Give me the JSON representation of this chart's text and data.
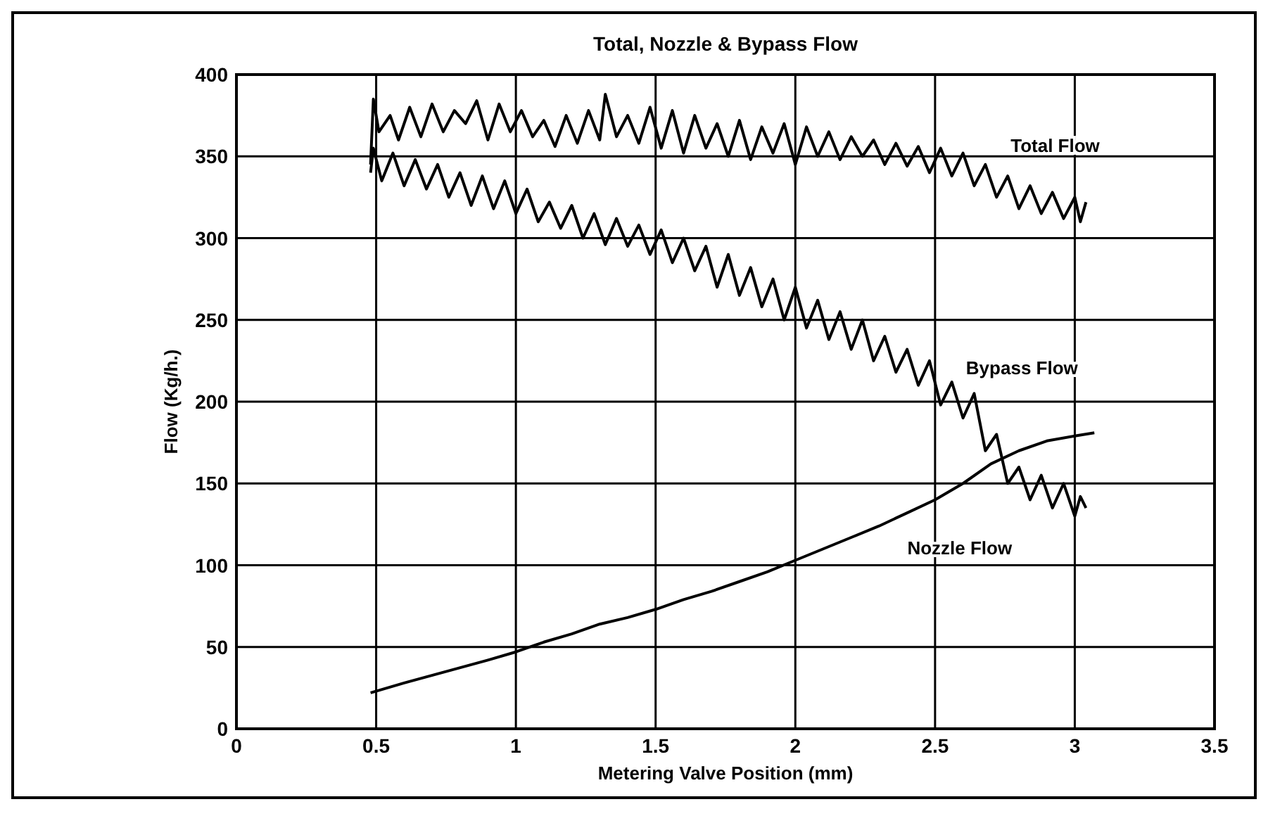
{
  "chart_data": {
    "type": "line",
    "title": "Total, Nozzle & Bypass Flow",
    "xlabel": "Metering Valve Position (mm)",
    "ylabel": "Flow (Kg/h.)",
    "xlim": [
      0,
      3.5
    ],
    "xticks": [
      0,
      0.5,
      1,
      1.5,
      2,
      2.5,
      3,
      3.5
    ],
    "ylim": [
      0,
      400
    ],
    "yticks": [
      0,
      50,
      100,
      150,
      200,
      250,
      300,
      350,
      400
    ],
    "grid": true,
    "marker": "none",
    "line_style": "solid",
    "series": [
      {
        "name": "Total Flow",
        "color": "#000000",
        "x": [
          0.48,
          0.49,
          0.51,
          0.55,
          0.58,
          0.62,
          0.66,
          0.7,
          0.74,
          0.78,
          0.82,
          0.86,
          0.9,
          0.94,
          0.98,
          1.02,
          1.06,
          1.1,
          1.14,
          1.18,
          1.22,
          1.26,
          1.3,
          1.32,
          1.36,
          1.4,
          1.44,
          1.48,
          1.52,
          1.56,
          1.6,
          1.64,
          1.68,
          1.72,
          1.76,
          1.8,
          1.84,
          1.88,
          1.92,
          1.96,
          2.0,
          2.04,
          2.08,
          2.12,
          2.16,
          2.2,
          2.24,
          2.28,
          2.32,
          2.36,
          2.4,
          2.44,
          2.48,
          2.52,
          2.56,
          2.6,
          2.64,
          2.68,
          2.72,
          2.76,
          2.8,
          2.84,
          2.88,
          2.92,
          2.96,
          3.0,
          3.02,
          3.04
        ],
        "values": [
          345,
          385,
          365,
          375,
          360,
          380,
          362,
          382,
          365,
          378,
          370,
          384,
          360,
          382,
          365,
          378,
          362,
          372,
          356,
          375,
          358,
          378,
          360,
          388,
          362,
          375,
          358,
          380,
          355,
          378,
          352,
          375,
          355,
          370,
          350,
          372,
          348,
          368,
          352,
          370,
          345,
          368,
          350,
          365,
          348,
          362,
          350,
          360,
          345,
          358,
          344,
          356,
          340,
          355,
          338,
          352,
          332,
          345,
          325,
          338,
          318,
          332,
          315,
          328,
          312,
          325,
          310,
          322
        ]
      },
      {
        "name": "Bypass Flow",
        "color": "#000000",
        "x": [
          0.48,
          0.49,
          0.52,
          0.56,
          0.6,
          0.64,
          0.68,
          0.72,
          0.76,
          0.8,
          0.84,
          0.88,
          0.92,
          0.96,
          1.0,
          1.04,
          1.08,
          1.12,
          1.16,
          1.2,
          1.24,
          1.28,
          1.32,
          1.36,
          1.4,
          1.44,
          1.48,
          1.52,
          1.56,
          1.6,
          1.64,
          1.68,
          1.72,
          1.76,
          1.8,
          1.84,
          1.88,
          1.92,
          1.96,
          2.0,
          2.04,
          2.08,
          2.12,
          2.16,
          2.2,
          2.24,
          2.28,
          2.32,
          2.36,
          2.4,
          2.44,
          2.48,
          2.52,
          2.56,
          2.6,
          2.64,
          2.68,
          2.72,
          2.76,
          2.8,
          2.84,
          2.88,
          2.92,
          2.96,
          3.0,
          3.02,
          3.04
        ],
        "values": [
          340,
          355,
          335,
          352,
          332,
          348,
          330,
          345,
          325,
          340,
          320,
          338,
          318,
          335,
          315,
          330,
          310,
          322,
          306,
          320,
          300,
          315,
          296,
          312,
          295,
          308,
          290,
          305,
          285,
          300,
          280,
          295,
          270,
          290,
          265,
          282,
          258,
          275,
          250,
          270,
          245,
          262,
          238,
          255,
          232,
          250,
          225,
          240,
          218,
          232,
          210,
          225,
          198,
          212,
          190,
          205,
          170,
          180,
          150,
          160,
          140,
          155,
          135,
          150,
          130,
          142,
          135
        ]
      },
      {
        "name": "Nozzle Flow",
        "color": "#000000",
        "x": [
          0.48,
          0.6,
          0.75,
          0.9,
          1.0,
          1.1,
          1.2,
          1.3,
          1.4,
          1.5,
          1.6,
          1.7,
          1.8,
          1.9,
          2.0,
          2.1,
          2.2,
          2.3,
          2.4,
          2.5,
          2.6,
          2.7,
          2.8,
          2.9,
          3.0,
          3.07
        ],
        "values": [
          22,
          28,
          35,
          42,
          47,
          53,
          58,
          64,
          68,
          73,
          79,
          84,
          90,
          96,
          103,
          110,
          117,
          124,
          132,
          140,
          150,
          162,
          170,
          176,
          179,
          181
        ]
      }
    ]
  }
}
